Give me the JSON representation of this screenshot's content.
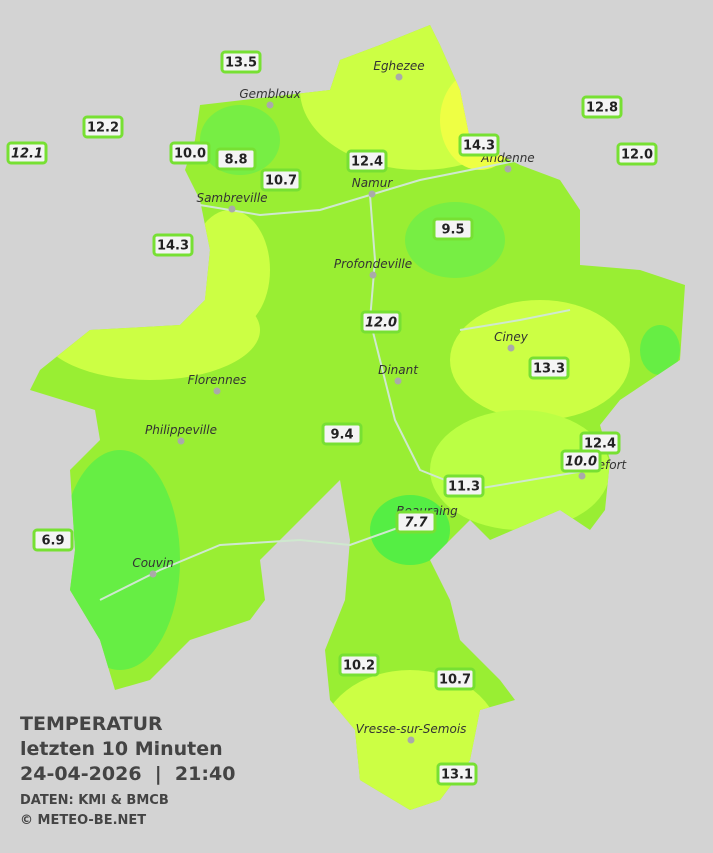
{
  "title": {
    "line1": "TEMPERATUR",
    "line2": "letzten 10 Minuten",
    "line3": "24-04-2026  |  21:40",
    "source": "DATEN: KMI & BMCB",
    "credit": "© METEO-BE.NET"
  },
  "cities": [
    "Eghezee",
    "Gembloux",
    "Namur",
    "Andenne",
    "Sambreville",
    "Profondeville",
    "Ciney",
    "Dinant",
    "Florennes",
    "Philippeville",
    "Rochefort",
    "Beauraing",
    "Couvin",
    "Vresse-sur-Semois"
  ],
  "stations": [
    "13.5",
    "12.2",
    "12.1",
    "10.0",
    "8.8",
    "10.7",
    "12.4",
    "14.3",
    "12.8",
    "12.0",
    "14.3",
    "9.5",
    "12.0",
    "13.3",
    "9.4",
    "12.4",
    "10.0",
    "11.3",
    "7.7",
    "6.9",
    "10.2",
    "10.7",
    "13.1"
  ]
}
